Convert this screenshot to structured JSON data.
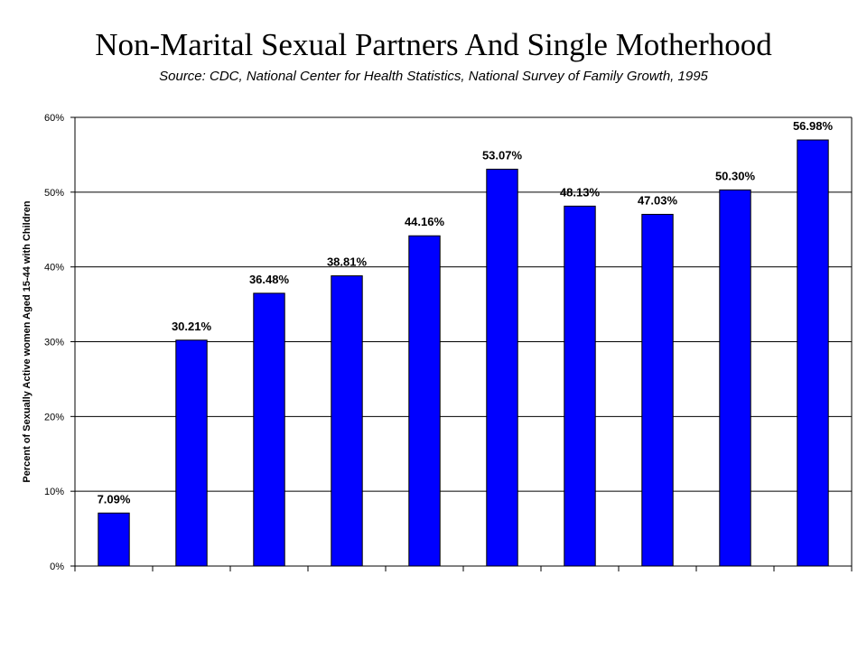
{
  "chart_data": {
    "type": "bar",
    "title": "Non-Marital Sexual Partners And Single Motherhood",
    "subtitle": "Source: CDC, National Center for Health Statistics, National Survey of Family Growth, 1995",
    "xlabel": "",
    "ylabel": "Percent of Sexually Active women Aged 15-44 with Children",
    "categories": [
      "",
      "",
      "",
      "",
      "",
      "",
      "",
      "",
      "",
      ""
    ],
    "values": [
      7.09,
      30.21,
      36.48,
      38.81,
      44.16,
      53.07,
      48.13,
      47.03,
      50.3,
      56.98
    ],
    "data_labels": [
      "7.09%",
      "30.21%",
      "36.48%",
      "38.81%",
      "44.16%",
      "53.07%",
      "48.13%",
      "47.03%",
      "50.30%",
      "56.98%"
    ],
    "ylim": [
      0,
      60
    ],
    "yticks": [
      0,
      10,
      20,
      30,
      40,
      50,
      60
    ],
    "ytick_labels": [
      "0%",
      "10%",
      "20%",
      "30%",
      "40%",
      "50%",
      "60%"
    ],
    "grid": true,
    "legend": "none",
    "bar_color": "#0000ff",
    "bar_edge_color": "#000000"
  }
}
